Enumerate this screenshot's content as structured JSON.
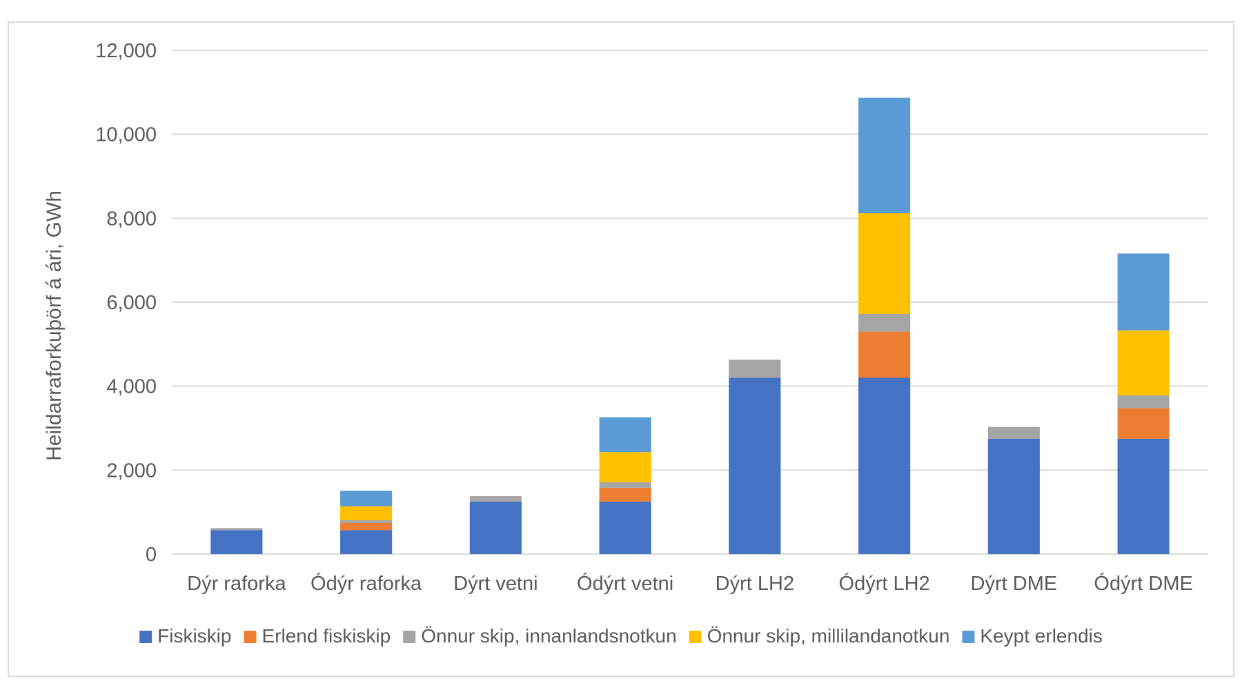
{
  "chart_data": {
    "type": "bar",
    "stacked": true,
    "title": "",
    "xlabel": "",
    "ylabel": "Heildarraforkuþörf á ári, GWh",
    "ylim": [
      0,
      12000
    ],
    "yticks": [
      0,
      2000,
      4000,
      6000,
      8000,
      10000,
      12000
    ],
    "ytick_labels": [
      "0",
      "2,000",
      "4,000",
      "6,000",
      "8,000",
      "10,000",
      "12,000"
    ],
    "grid": true,
    "legend_position": "bottom",
    "categories": [
      "Dýr raforka",
      "Ódýr raforka",
      "Dýrt vetni",
      "Ódýrt vetni",
      "Dýrt LH2",
      "Ódýrt LH2",
      "Dýrt DME",
      "Ódýrt DME"
    ],
    "series": [
      {
        "name": "Fiskiskip",
        "color": "#4472c4",
        "values": [
          570,
          570,
          1250,
          1250,
          4200,
          4200,
          2750,
          2750
        ]
      },
      {
        "name": "Erlend fiskiskip",
        "color": "#ed7d31",
        "values": [
          0,
          170,
          0,
          330,
          0,
          1100,
          0,
          730
        ]
      },
      {
        "name": "Önnur skip, innanlandsnotkun",
        "color": "#a5a5a5",
        "values": [
          50,
          70,
          130,
          130,
          430,
          420,
          280,
          300
        ]
      },
      {
        "name": "Önnur skip, millilandanotkun",
        "color": "#ffc000",
        "values": [
          0,
          330,
          0,
          720,
          0,
          2400,
          0,
          1550
        ]
      },
      {
        "name": "Keypt erlendis",
        "color": "#5b9bd5",
        "values": [
          0,
          370,
          0,
          830,
          0,
          2750,
          0,
          1830
        ]
      }
    ]
  }
}
